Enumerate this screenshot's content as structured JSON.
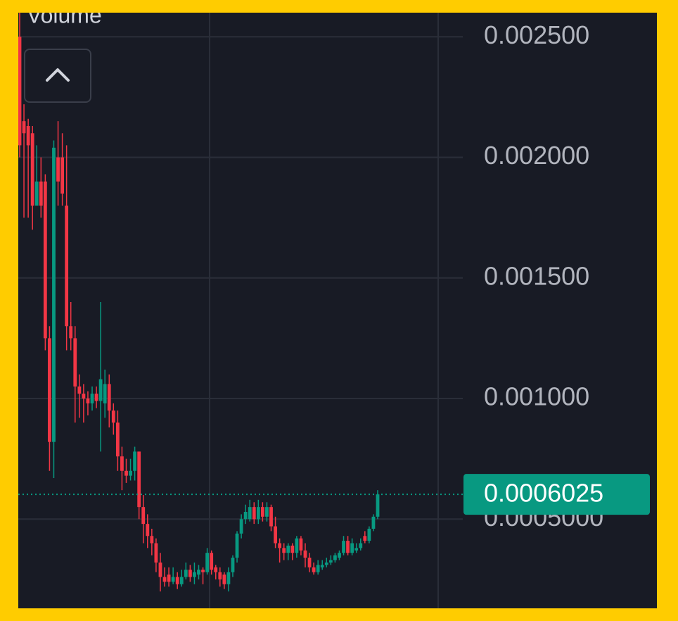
{
  "chart_data": {
    "type": "candlestick",
    "indicator_label": "Volume",
    "up_color": "#089981",
    "down_color": "#f23645",
    "ylim": [
      0.00013,
      0.0026
    ],
    "yticks": [
      {
        "value": 0.0025,
        "label": "0.002500"
      },
      {
        "value": 0.002,
        "label": "0.002000"
      },
      {
        "value": 0.0015,
        "label": "0.001500"
      },
      {
        "value": 0.001,
        "label": "0.001000"
      },
      {
        "value": 0.0005,
        "label": "0.0005000"
      }
    ],
    "grid": true,
    "last_price": {
      "value": 0.0006025,
      "color": "#089981"
    },
    "open": [
      0.0025,
      0.00215,
      0.00213,
      0.0021,
      0.0018,
      0.0019,
      0.0019,
      0.00125,
      0.00082,
      0.002,
      0.002,
      0.0018,
      0.0013,
      0.00125,
      0.00105,
      0.00102,
      0.001,
      0.00098,
      0.00102,
      0.00099,
      0.00098,
      0.00106,
      0.00095,
      0.0009,
      0.00076,
      0.0007,
      0.00068,
      0.0007,
      0.00078,
      0.00055,
      0.00048,
      0.00043,
      0.0004,
      0.00032,
      0.00026,
      0.00027,
      0.00024,
      0.00026,
      0.00023,
      0.00026,
      0.00029,
      0.00026,
      0.00027,
      0.00029,
      0.00028,
      0.00036,
      0.0003,
      0.00028,
      0.00027,
      0.00023,
      0.00028,
      0.00034,
      0.00044,
      0.0005,
      0.0005,
      0.00055,
      0.0005,
      0.00055,
      0.00051,
      0.00055,
      0.00047,
      0.0004,
      0.00038,
      0.00036,
      0.00039,
      0.00036,
      0.00042,
      0.00037,
      0.00034,
      0.0003,
      0.00028,
      0.0003,
      0.00031,
      0.00032,
      0.00033,
      0.00034,
      0.00036,
      0.00041,
      0.00036,
      0.00037,
      0.00038,
      0.00043,
      0.00041,
      0.00046,
      0.00051
    ],
    "high": [
      0.0026,
      0.00222,
      0.00216,
      0.00213,
      0.00205,
      0.002,
      0.00193,
      0.0013,
      0.00207,
      0.00215,
      0.0021,
      0.00205,
      0.0014,
      0.0013,
      0.0011,
      0.00106,
      0.00103,
      0.00105,
      0.00105,
      0.0014,
      0.00112,
      0.0011,
      0.00098,
      0.00095,
      0.0008,
      0.00075,
      0.00075,
      0.0008,
      0.00078,
      0.0006,
      0.00052,
      0.00046,
      0.00042,
      0.00036,
      0.0003,
      0.0003,
      0.0003,
      0.00028,
      0.00029,
      0.00032,
      0.00031,
      0.00032,
      0.00031,
      0.0003,
      0.00038,
      0.00037,
      0.00031,
      0.0003,
      0.00028,
      0.0003,
      0.00035,
      0.00045,
      0.00052,
      0.00056,
      0.00058,
      0.00057,
      0.00058,
      0.00057,
      0.00057,
      0.00056,
      0.00051,
      0.00042,
      0.0004,
      0.0004,
      0.0004,
      0.00043,
      0.00043,
      0.0004,
      0.00036,
      0.00032,
      0.00033,
      0.00033,
      0.00034,
      0.00035,
      0.00036,
      0.00037,
      0.00043,
      0.00043,
      0.00042,
      0.0004,
      0.00042,
      0.00045,
      0.00047,
      0.00052,
      0.00062
    ],
    "low": [
      0.002,
      0.00175,
      0.00175,
      0.0017,
      0.0018,
      0.00175,
      0.0012,
      0.0007,
      0.00067,
      0.0018,
      0.0018,
      0.0012,
      0.0012,
      0.0009,
      0.00092,
      0.0009,
      0.00093,
      0.00095,
      0.00096,
      0.00078,
      0.00092,
      0.00088,
      0.00085,
      0.0007,
      0.00062,
      0.00065,
      0.00066,
      0.00066,
      0.0005,
      0.0004,
      0.00038,
      0.00035,
      0.00028,
      0.0002,
      0.00022,
      0.00022,
      0.00023,
      0.00021,
      0.00022,
      0.00025,
      0.00024,
      0.00023,
      0.00025,
      0.00023,
      0.00027,
      0.00027,
      0.00025,
      0.00022,
      0.00021,
      0.0002,
      0.00026,
      0.00032,
      0.00042,
      0.00048,
      0.00049,
      0.00048,
      0.00048,
      0.00049,
      0.00049,
      0.00045,
      0.00038,
      0.00032,
      0.00033,
      0.00033,
      0.00033,
      0.00034,
      0.00035,
      0.0003,
      0.00028,
      0.00027,
      0.00027,
      0.00029,
      0.0003,
      0.00031,
      0.00032,
      0.00033,
      0.00035,
      0.00035,
      0.00035,
      0.00036,
      0.00037,
      0.0004,
      0.0004,
      0.00045,
      0.0005
    ],
    "close": [
      0.00205,
      0.0021,
      0.00205,
      0.0018,
      0.0019,
      0.0018,
      0.00125,
      0.00082,
      0.00204,
      0.0019,
      0.00185,
      0.0013,
      0.00125,
      0.00105,
      0.00102,
      0.001,
      0.00098,
      0.00102,
      0.00099,
      0.00108,
      0.00106,
      0.00095,
      0.0009,
      0.00076,
      0.0007,
      0.00068,
      0.0007,
      0.00078,
      0.00055,
      0.00048,
      0.00043,
      0.0004,
      0.00032,
      0.00026,
      0.00024,
      0.00024,
      0.00026,
      0.00023,
      0.00026,
      0.00029,
      0.00026,
      0.00028,
      0.00029,
      0.00028,
      0.00036,
      0.00029,
      0.00028,
      0.00025,
      0.00023,
      0.00028,
      0.00034,
      0.00044,
      0.0005,
      0.00053,
      0.00055,
      0.0005,
      0.00055,
      0.00051,
      0.00055,
      0.00047,
      0.0004,
      0.00038,
      0.00036,
      0.00039,
      0.00036,
      0.00042,
      0.00037,
      0.00034,
      0.0003,
      0.00028,
      0.00031,
      0.00031,
      0.00032,
      0.00033,
      0.00035,
      0.00036,
      0.00041,
      0.00036,
      0.0004,
      0.00038,
      0.0004,
      0.00041,
      0.00046,
      0.00051,
      0.0006025
    ]
  }
}
